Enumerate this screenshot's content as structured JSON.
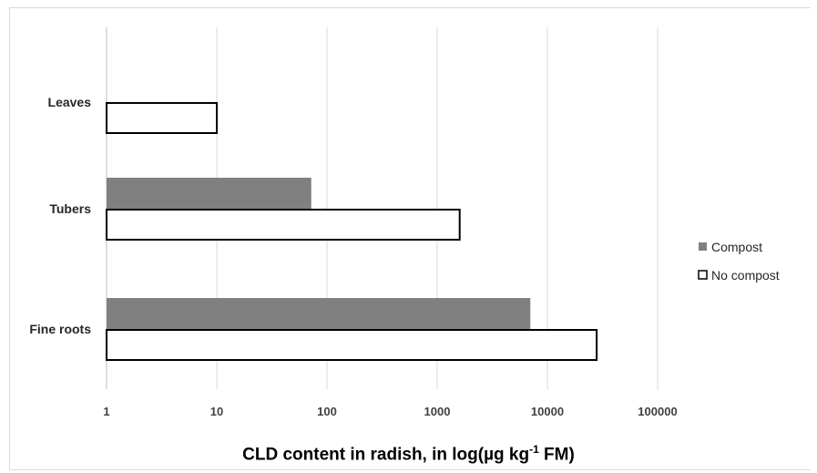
{
  "chart_data": {
    "type": "bar",
    "orientation": "horizontal",
    "x_scale": "log",
    "xlim": [
      1,
      100000
    ],
    "x_ticks": [
      "1",
      "10",
      "100",
      "1000",
      "10000",
      "100000"
    ],
    "categories": [
      "Leaves",
      "Tubers",
      "Fine roots"
    ],
    "series": [
      {
        "name": "Compost",
        "values": [
          null,
          72,
          7000
        ],
        "color": "#808080"
      },
      {
        "name": "No compost",
        "values": [
          10,
          1600,
          28000
        ],
        "color": "#ffffff"
      }
    ],
    "xlabel": {
      "before": "CLD content in radish, in log(µg kg",
      "sup": "-1",
      "after": " FM)"
    },
    "grid": "vertical",
    "legend": "right"
  }
}
